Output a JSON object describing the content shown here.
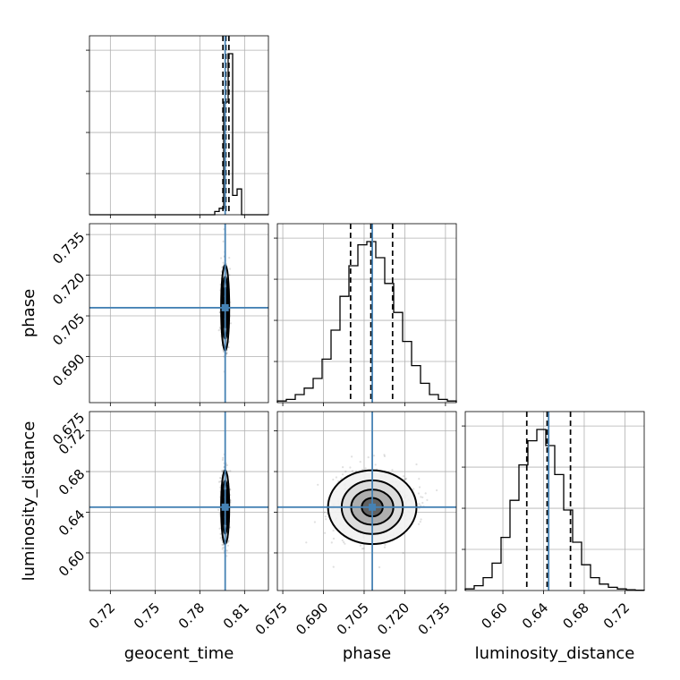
{
  "chart_data": {
    "type": "corner",
    "parameters": [
      "geocent_time",
      "phase",
      "luminosity_distance"
    ],
    "truth_values": {
      "geocent_time": 0.797,
      "phase": 0.708,
      "luminosity_distance": 0.645
    },
    "ranges": {
      "geocent_time": [
        0.706,
        0.826
      ],
      "phase": [
        0.673,
        0.739
      ],
      "luminosity_distance": [
        0.563,
        0.739
      ]
    },
    "ticks": {
      "geocent_time": [
        "0.72",
        "0.75",
        "0.78",
        "0.81"
      ],
      "phase": [
        "0.675",
        "0.690",
        "0.705",
        "0.720",
        "0.735"
      ],
      "luminosity_distance": [
        "0.60",
        "0.64",
        "0.68",
        "0.72"
      ]
    },
    "tick_values": {
      "geocent_time": [
        0.72,
        0.75,
        0.78,
        0.81
      ],
      "phase": [
        0.675,
        0.69,
        0.705,
        0.72,
        0.735
      ],
      "luminosity_distance": [
        0.6,
        0.64,
        0.68,
        0.72
      ]
    },
    "y_ticks": {
      "phase": [
        "0.690",
        "0.705",
        "0.720",
        "0.735"
      ],
      "luminosity_distance": [
        "0.60",
        "0.64",
        "0.68",
        "0.72"
      ]
    },
    "y_tick_values": {
      "phase": [
        0.69,
        0.705,
        0.72,
        0.735
      ],
      "luminosity_distance": [
        0.6,
        0.64,
        0.68,
        0.72
      ]
    },
    "top_right_label": "0.675",
    "quantiles": {
      "geocent_time": [
        0.7955,
        0.7975,
        0.7995
      ],
      "phase": [
        0.7,
        0.7075,
        0.7155
      ],
      "luminosity_distance": [
        0.6235,
        0.6435,
        0.6665
      ]
    },
    "histograms": {
      "geocent_time": {
        "range": [
          0.706,
          0.826
        ],
        "counts": [
          0,
          0,
          0,
          0,
          0,
          0,
          0,
          0,
          0,
          0,
          0,
          0,
          0,
          0,
          0,
          0,
          0,
          0,
          0,
          0,
          0,
          0,
          0,
          0,
          0,
          0,
          0,
          0,
          0.02,
          0.04,
          0.7,
          1.0,
          0.12,
          0.16,
          0,
          0,
          0,
          0,
          0,
          0
        ]
      },
      "phase": {
        "range": [
          0.673,
          0.739
        ],
        "counts": [
          0.01,
          0.02,
          0.05,
          0.09,
          0.15,
          0.27,
          0.45,
          0.66,
          0.85,
          0.98,
          1.0,
          0.9,
          0.74,
          0.56,
          0.38,
          0.23,
          0.12,
          0.05,
          0.02,
          0.01
        ]
      },
      "luminosity_distance": {
        "range": [
          0.563,
          0.739
        ],
        "counts": [
          0.01,
          0.03,
          0.08,
          0.17,
          0.33,
          0.56,
          0.78,
          0.93,
          1.0,
          0.9,
          0.72,
          0.5,
          0.3,
          0.16,
          0.08,
          0.04,
          0.02,
          0.01,
          0.005,
          0.002
        ]
      }
    },
    "contours_2d": {
      "phase_vs_geocent_time": {
        "center": [
          0.797,
          0.708
        ],
        "sigma": [
          0.0012,
          0.0072
        ]
      },
      "luminosity_distance_vs_geocent_time": {
        "center": [
          0.797,
          0.645
        ],
        "sigma": [
          0.0012,
          0.0165
        ]
      },
      "luminosity_distance_vs_phase": {
        "center": [
          0.708,
          0.645
        ],
        "sigma": [
          0.0072,
          0.0165
        ]
      }
    },
    "colors": {
      "truth": "#4682b4",
      "lines": "#000000",
      "points": "#555555"
    }
  }
}
